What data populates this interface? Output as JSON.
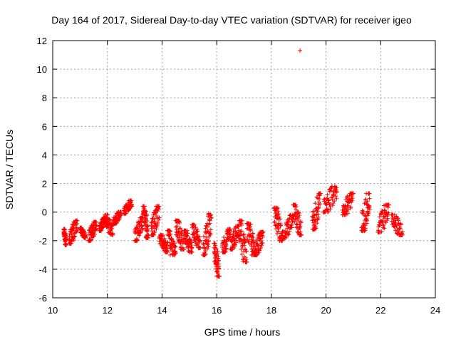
{
  "chart_data": {
    "type": "scatter",
    "title": "Day 164 of 2017, Sidereal Day-to-day VTEC variation (SDTVAR) for receiver igeo",
    "xlabel": "GPS time / hours",
    "ylabel": "SDTVAR / TECUs",
    "xlim": [
      10,
      24
    ],
    "ylim": [
      -6,
      12
    ],
    "xticks": [
      10,
      12,
      14,
      16,
      18,
      20,
      22,
      24
    ],
    "yticks": [
      -6,
      -4,
      -2,
      0,
      2,
      4,
      6,
      8,
      10,
      12
    ],
    "grid": true,
    "marker": "+",
    "color": "#ff0000",
    "series": [
      {
        "name": "SDTVAR",
        "clusters": [
          {
            "x": [
              10.4,
              10.5
            ],
            "y": [
              -2.3,
              -1.2
            ]
          },
          {
            "x": [
              10.6,
              10.9
            ],
            "y": [
              -2.2,
              -0.6
            ]
          },
          {
            "x": [
              11.0,
              11.2
            ],
            "y": [
              -1.8,
              -1.1
            ]
          },
          {
            "x": [
              11.3,
              11.6
            ],
            "y": [
              -2.0,
              -0.7
            ]
          },
          {
            "x": [
              11.7,
              11.9
            ],
            "y": [
              -1.3,
              -0.4
            ]
          },
          {
            "x": [
              11.9,
              12.2
            ],
            "y": [
              -1.6,
              -0.2
            ]
          },
          {
            "x": [
              12.2,
              12.5
            ],
            "y": [
              -0.8,
              0.0
            ]
          },
          {
            "x": [
              12.6,
              12.9
            ],
            "y": [
              -0.1,
              0.8
            ]
          },
          {
            "x": [
              13.0,
              13.3
            ],
            "y": [
              -2.0,
              -0.4
            ]
          },
          {
            "x": [
              13.3,
              13.5
            ],
            "y": [
              -1.8,
              0.4
            ]
          },
          {
            "x": [
              13.6,
              13.9
            ],
            "y": [
              -1.6,
              0.4
            ]
          },
          {
            "x": [
              13.9,
              14.2
            ],
            "y": [
              -2.8,
              -1.6
            ]
          },
          {
            "x": [
              14.2,
              14.5
            ],
            "y": [
              -3.0,
              -1.3
            ]
          },
          {
            "x": [
              14.5,
              14.8
            ],
            "y": [
              -2.6,
              -0.6
            ]
          },
          {
            "x": [
              14.8,
              15.1
            ],
            "y": [
              -2.8,
              -1.3
            ]
          },
          {
            "x": [
              15.1,
              15.4
            ],
            "y": [
              -2.5,
              -0.9
            ]
          },
          {
            "x": [
              15.5,
              15.8
            ],
            "y": [
              -3.0,
              -0.2
            ]
          },
          {
            "x": [
              15.9,
              16.1
            ],
            "y": [
              -4.5,
              -2.2
            ]
          },
          {
            "x": [
              16.2,
              16.5
            ],
            "y": [
              -2.8,
              -1.2
            ]
          },
          {
            "x": [
              16.5,
              16.8
            ],
            "y": [
              -2.6,
              -1.0
            ]
          },
          {
            "x": [
              16.8,
              17.1
            ],
            "y": [
              -3.5,
              -0.6
            ]
          },
          {
            "x": [
              17.1,
              17.4
            ],
            "y": [
              -3.0,
              -0.8
            ]
          },
          {
            "x": [
              17.4,
              17.7
            ],
            "y": [
              -3.0,
              -1.4
            ]
          },
          {
            "x": [
              18.1,
              18.4
            ],
            "y": [
              -2.0,
              0.3
            ]
          },
          {
            "x": [
              18.4,
              18.8
            ],
            "y": [
              -1.8,
              -0.2
            ]
          },
          {
            "x": [
              18.8,
              19.1
            ],
            "y": [
              -1.6,
              0.5
            ]
          },
          {
            "x": [
              19.5,
              19.8
            ],
            "y": [
              -1.2,
              1.3
            ]
          },
          {
            "x": [
              19.9,
              20.4
            ],
            "y": [
              0.0,
              1.8
            ]
          },
          {
            "x": [
              20.6,
              21.0
            ],
            "y": [
              -0.2,
              1.3
            ]
          },
          {
            "x": [
              21.3,
              21.6
            ],
            "y": [
              -1.3,
              1.3
            ]
          },
          {
            "x": [
              21.9,
              22.3
            ],
            "y": [
              -1.4,
              0.5
            ]
          },
          {
            "x": [
              22.4,
              22.8
            ],
            "y": [
              -1.6,
              -0.2
            ]
          }
        ],
        "outliers": [
          {
            "x": 19.05,
            "y": 11.3
          },
          {
            "x": 15.7,
            "y": -0.1
          },
          {
            "x": 16.0,
            "y": -4.5
          },
          {
            "x": 14.3,
            "y": -3.0
          }
        ]
      }
    ]
  }
}
